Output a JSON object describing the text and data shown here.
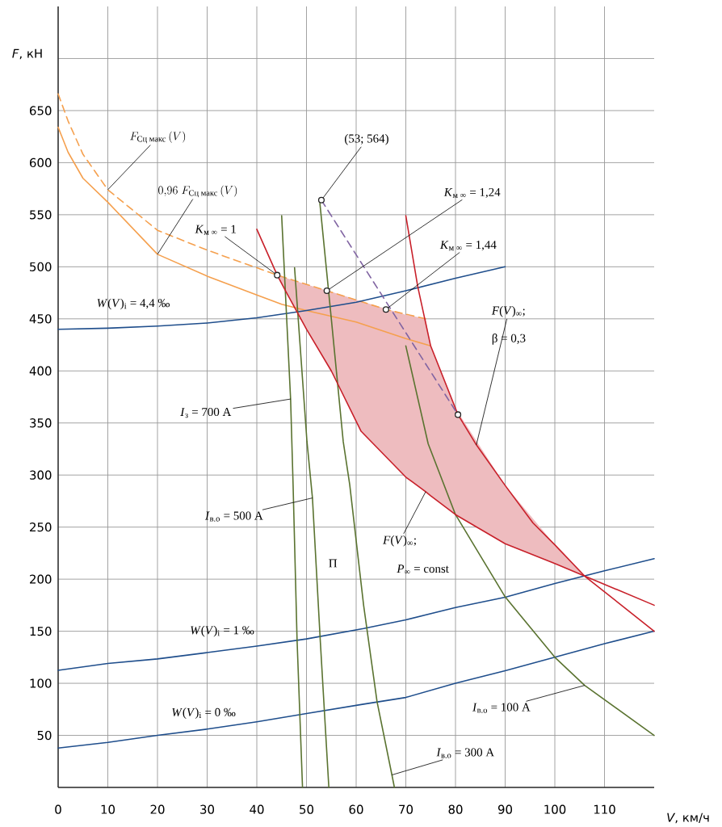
{
  "chart_data": {
    "type": "line",
    "xlabel": "*V*, км/ч",
    "ylabel": "*F*, кН",
    "xlim": [
      0,
      120
    ],
    "ylim": [
      0,
      750
    ],
    "xticks": [
      0,
      10,
      20,
      30,
      40,
      50,
      60,
      70,
      80,
      90,
      100,
      110
    ],
    "yticks": [
      50,
      100,
      150,
      200,
      250,
      300,
      350,
      400,
      450,
      500,
      550,
      600,
      650,
      {
        "value": 700,
        "label": null
      }
    ],
    "grid": true,
    "series": [
      {
        "color": "#f5a04e",
        "line_style": "dashed",
        "x": [
          0,
          2,
          5,
          10,
          20,
          30,
          40,
          44.1,
          54.1,
          66,
          74
        ],
        "values": [
          666,
          640,
          608,
          574,
          535,
          516,
          499,
          492,
          477,
          459,
          450
        ]
      },
      {
        "color": "#f5a04e",
        "line_style": "solid",
        "x": [
          0,
          2,
          5,
          10,
          20,
          30,
          40,
          45,
          50,
          60,
          70,
          75
        ],
        "values": [
          634,
          610,
          585,
          562,
          512,
          491,
          473,
          464,
          458,
          447,
          431,
          424
        ]
      },
      {
        "color": "#1f4e8c",
        "line_style": "solid",
        "x": [
          0,
          10,
          20,
          30,
          40,
          50,
          60,
          70,
          80,
          90
        ],
        "values": [
          440,
          441,
          443,
          446,
          451,
          458,
          466,
          477,
          489,
          500
        ]
      },
      {
        "color": "#1f4e8c",
        "line_style": "solid",
        "x": [
          0,
          10,
          20,
          30,
          40,
          50,
          61.5,
          70,
          80,
          90,
          100,
          110,
          120
        ],
        "values": [
          112.5,
          119,
          123.4,
          129.5,
          135.7,
          142.6,
          152.6,
          161,
          172.7,
          182.7,
          195.8,
          208,
          219.7
        ]
      },
      {
        "color": "#1f4e8c",
        "line_style": "solid",
        "x": [
          0,
          10,
          20,
          30,
          40,
          50,
          61.5,
          70,
          80,
          90,
          100,
          110,
          120
        ],
        "values": [
          37.8,
          43.2,
          50,
          56,
          63,
          71,
          80,
          86.4,
          100,
          112,
          125,
          138,
          150
        ]
      },
      {
        "color": "#5a7330",
        "line_style": "solid",
        "x": [
          45,
          46.8,
          47.3,
          48.1,
          49.2
        ],
        "values": [
          549,
          373,
          291,
          142,
          0
        ]
      },
      {
        "color": "#5a7330",
        "line_style": "solid",
        "x": [
          47.6,
          50.1,
          51.2,
          52.8,
          54.5
        ],
        "values": [
          499,
          332,
          278,
          139,
          0
        ]
      },
      {
        "color": "#5a7330",
        "line_style": "solid",
        "x": [
          52.7,
          55,
          57.4,
          58.7,
          61.5,
          64.2,
          67.2,
          67.7
        ],
        "values": [
          561,
          450,
          332,
          291,
          175,
          82.5,
          12,
          0
        ]
      },
      {
        "color": "#5a7330",
        "line_style": "solid",
        "x": [
          70,
          74.5,
          80,
          90,
          100,
          106,
          120
        ],
        "values": [
          424,
          330,
          262,
          183,
          125,
          98,
          50
        ]
      },
      {
        "color": "#c8202a",
        "line_style": "solid",
        "x": [
          40,
          44.1,
          46,
          50,
          55,
          61,
          70,
          74,
          75,
          80,
          90,
          100,
          106,
          120
        ],
        "values": [
          536,
          492,
          475,
          440,
          400,
          342,
          298,
          284,
          280,
          262,
          234,
          215,
          203,
          175
        ],
        "lower": [
          null,
          492,
          475,
          440,
          400,
          342,
          298,
          284,
          280,
          262,
          234,
          215,
          203,
          null
        ],
        "upper": [
          null,
          492,
          489,
          483,
          476,
          467,
          454,
          450,
          424,
          364,
          290,
          233,
          203,
          null
        ]
      },
      {
        "color": "#c8202a",
        "line_style": "solid",
        "x": [
          70,
          72.4,
          75,
          80.5,
          84.2,
          90,
          95.6,
          100,
          106,
          120
        ],
        "values": [
          549,
          481,
          424,
          358,
          329,
          290,
          254,
          233,
          203,
          150
        ]
      },
      {
        "color": "#8064a2",
        "line_style": "dashed",
        "x": [
          53,
          80.5
        ],
        "values": [
          564,
          358
        ]
      },
      {
        "type": "scatter",
        "marker": "circle",
        "color": "#222222",
        "x": [
          44.1,
          53,
          54.1,
          66,
          80.5
        ],
        "values": [
          492,
          564,
          477,
          459,
          358
        ]
      }
    ],
    "annotations": [
      {
        "text": "F_{\\text{Сц макс}}\\,(V)",
        "x": 10,
        "y": 574
      },
      {
        "text": "0{,}96\\;F_{\\text{Сц макс}}\\,(V)",
        "x": 20,
        "y": 512
      },
      {
        "text": "*K*$_{м ∞}$ = 1",
        "x": 44.1,
        "y": 492
      },
      {
        "text": "(53; 564)",
        "x": 53,
        "y": 564
      },
      {
        "text": "*K*$_{м ∞}$ = 1,24",
        "x": 54.1,
        "y": 477
      },
      {
        "text": "*K*$_{м ∞}$ = 1,44",
        "x": 66,
        "y": 459
      },
      "*W*(*V*)$_{i}$ = 4,4 ‰",
      {
        "text": "*F*(*V*)$_{∞}$;",
        "x": 84.2,
        "y": 329
      },
      "β = 0,3",
      {
        "text": "*I*$_{з}$ = 700 A",
        "x": 46.8,
        "y": 373
      },
      {
        "text": "*I*$_{в.о}$ = 500 A",
        "x": 51.2,
        "y": 278
      },
      "П",
      {
        "text": "*F*(*V*)$_{∞}$;",
        "x": 74,
        "y": 284
      },
      "*P*$_{∞}$ = const",
      "*W*(*V*)$_{i}$ = 1 ‰",
      "*W*(*V*)$_{i}$ = 0 ‰",
      {
        "text": "*I*$_{в.о}$ = 100 A",
        "x": 106,
        "y": 98
      },
      {
        "text": "*I*$_{в.о}$ = 300 A",
        "x": 67.2,
        "y": 12
      }
    ]
  }
}
